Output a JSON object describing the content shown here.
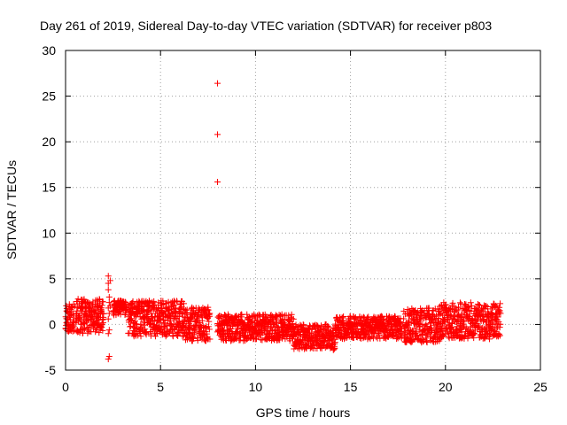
{
  "chart_data": {
    "type": "scatter",
    "title": "Day 261 of 2019, Sidereal Day-to-day VTEC variation (SDTVAR) for receiver p803",
    "xlabel": "GPS time / hours",
    "ylabel": "SDTVAR / TECUs",
    "xlim": [
      0,
      25
    ],
    "ylim": [
      -5,
      30
    ],
    "xticks": [
      0,
      5,
      10,
      15,
      20,
      25
    ],
    "yticks": [
      -5,
      0,
      5,
      10,
      15,
      20,
      25,
      30
    ],
    "xtick_labels": [
      "0",
      "5",
      "10",
      "15",
      "20",
      "25"
    ],
    "ytick_labels": [
      "-5",
      "0",
      "5",
      "10",
      "15",
      "20",
      "25",
      "30"
    ],
    "grid": true,
    "marker": "+",
    "color": "#ff0000",
    "series": [
      {
        "name": "SDTVAR",
        "points": [
          [
            0.05,
            0.2
          ],
          [
            0.1,
            1.5
          ],
          [
            0.15,
            -0.8
          ],
          [
            0.2,
            2.2
          ],
          [
            0.25,
            0.5
          ],
          [
            0.3,
            1.8
          ],
          [
            0.35,
            -0.3
          ],
          [
            0.4,
            1.0
          ],
          [
            0.5,
            2.0
          ],
          [
            0.55,
            0.2
          ],
          [
            0.6,
            1.2
          ],
          [
            0.7,
            0.8
          ],
          [
            0.8,
            1.5
          ],
          [
            0.85,
            0.0
          ],
          [
            0.9,
            2.5
          ],
          [
            1.0,
            -0.5
          ],
          [
            1.05,
            1.8
          ],
          [
            1.1,
            0.6
          ],
          [
            1.2,
            2.4
          ],
          [
            1.25,
            -0.8
          ],
          [
            1.3,
            1.0
          ],
          [
            1.4,
            2.2
          ],
          [
            1.45,
            0.3
          ],
          [
            1.5,
            1.6
          ],
          [
            1.6,
            -0.6
          ],
          [
            1.65,
            2.0
          ],
          [
            1.7,
            0.8
          ],
          [
            1.8,
            2.3
          ],
          [
            1.85,
            -0.2
          ],
          [
            1.9,
            1.4
          ],
          [
            1.95,
            0.5
          ],
          [
            2.25,
            5.3
          ],
          [
            2.25,
            4.5
          ],
          [
            2.25,
            3.8
          ],
          [
            2.3,
            3.0
          ],
          [
            2.3,
            2.4
          ],
          [
            2.25,
            1.8
          ],
          [
            2.3,
            1.2
          ],
          [
            2.25,
            0.6
          ],
          [
            2.3,
            -0.6
          ],
          [
            2.25,
            -1.0
          ],
          [
            2.3,
            -3.5
          ],
          [
            2.25,
            -3.8
          ],
          [
            2.35,
            4.8
          ],
          [
            2.35,
            2.0
          ],
          [
            2.6,
            2.0
          ],
          [
            2.7,
            1.5
          ],
          [
            2.8,
            2.3
          ],
          [
            3.0,
            1.7
          ],
          [
            3.1,
            2.1
          ],
          [
            3.4,
            1.0
          ],
          [
            3.5,
            2.2
          ],
          [
            3.6,
            0.2
          ],
          [
            3.7,
            1.8
          ],
          [
            3.75,
            -0.5
          ],
          [
            3.8,
            1.2
          ],
          [
            3.9,
            2.4
          ],
          [
            4.0,
            0.6
          ],
          [
            4.1,
            1.6
          ],
          [
            4.15,
            -0.8
          ],
          [
            4.2,
            0.9
          ],
          [
            4.3,
            1.4
          ],
          [
            4.4,
            0.0
          ],
          [
            4.5,
            1.2
          ],
          [
            4.6,
            -0.3
          ],
          [
            4.7,
            0.8
          ],
          [
            4.8,
            1.5
          ],
          [
            4.9,
            -0.6
          ],
          [
            5.0,
            0.5
          ],
          [
            5.1,
            1.3
          ],
          [
            5.2,
            -0.2
          ],
          [
            5.3,
            1.8
          ],
          [
            5.4,
            0.4
          ],
          [
            5.5,
            1.0
          ],
          [
            5.6,
            -0.5
          ],
          [
            5.7,
            0.7
          ],
          [
            5.8,
            1.3
          ],
          [
            5.9,
            0.0
          ],
          [
            6.0,
            0.9
          ],
          [
            6.1,
            -0.7
          ],
          [
            6.2,
            0.3
          ],
          [
            6.4,
            1.6
          ],
          [
            6.5,
            -0.9
          ],
          [
            6.55,
            -1.4
          ],
          [
            6.6,
            0.8
          ],
          [
            6.7,
            1.2
          ],
          [
            6.8,
            -0.4
          ],
          [
            6.9,
            0.6
          ],
          [
            7.0,
            1.0
          ],
          [
            7.1,
            -0.8
          ],
          [
            7.2,
            0.4
          ],
          [
            7.3,
            1.3
          ],
          [
            7.4,
            -0.2
          ],
          [
            7.5,
            0.8
          ],
          [
            8.0,
            26.4
          ],
          [
            8.0,
            20.8
          ],
          [
            8.0,
            15.6
          ],
          [
            8.2,
            -1.0
          ],
          [
            8.3,
            -1.6
          ],
          [
            8.4,
            0.3
          ],
          [
            8.5,
            -0.6
          ],
          [
            8.6,
            0.7
          ],
          [
            8.7,
            -1.3
          ],
          [
            8.8,
            -0.2
          ],
          [
            8.9,
            0.4
          ],
          [
            9.0,
            -0.8
          ],
          [
            9.2,
            0.2
          ],
          [
            9.4,
            -0.4
          ],
          [
            9.6,
            0.5
          ],
          [
            9.8,
            -0.3
          ],
          [
            10.0,
            0.8
          ],
          [
            10.2,
            0.1
          ],
          [
            10.4,
            0.5
          ],
          [
            10.6,
            -0.2
          ],
          [
            10.8,
            0.4
          ],
          [
            11.0,
            0.0
          ],
          [
            11.2,
            -0.4
          ],
          [
            11.4,
            0.1
          ],
          [
            11.6,
            -0.6
          ],
          [
            11.8,
            -0.2
          ],
          [
            12.0,
            -0.4
          ],
          [
            12.2,
            -0.9
          ],
          [
            12.4,
            -0.3
          ],
          [
            12.6,
            -1.1
          ],
          [
            12.8,
            -0.5
          ],
          [
            13.0,
            -1.6
          ],
          [
            13.2,
            -0.9
          ],
          [
            13.4,
            -2.0
          ],
          [
            13.6,
            -1.3
          ],
          [
            13.8,
            -2.4
          ],
          [
            14.0,
            -1.5
          ],
          [
            14.1,
            -2.8
          ],
          [
            14.2,
            -0.6
          ],
          [
            14.4,
            -0.9
          ],
          [
            14.6,
            -0.3
          ],
          [
            14.8,
            -1.2
          ],
          [
            15.0,
            -0.6
          ],
          [
            15.2,
            0.2
          ],
          [
            15.4,
            -0.8
          ],
          [
            15.6,
            0.0
          ],
          [
            15.7,
            0.8
          ],
          [
            15.8,
            -1.0
          ],
          [
            16.0,
            -0.2
          ],
          [
            16.2,
            -0.9
          ],
          [
            16.4,
            0.3
          ],
          [
            16.6,
            -0.5
          ],
          [
            16.8,
            -0.1
          ],
          [
            17.0,
            0.3
          ],
          [
            17.2,
            -0.6
          ],
          [
            17.4,
            0.1
          ],
          [
            17.6,
            -0.2
          ],
          [
            17.9,
            -1.5
          ],
          [
            18.0,
            -0.4
          ],
          [
            18.1,
            1.5
          ],
          [
            18.2,
            -1.8
          ],
          [
            18.3,
            0.6
          ],
          [
            18.4,
            -1.0
          ],
          [
            18.5,
            1.2
          ],
          [
            18.6,
            -1.6
          ],
          [
            18.7,
            0.4
          ],
          [
            18.8,
            -0.8
          ],
          [
            18.9,
            0.9
          ],
          [
            19.0,
            -1.2
          ],
          [
            19.1,
            1.5
          ],
          [
            19.2,
            -0.4
          ],
          [
            19.3,
            0.6
          ],
          [
            19.4,
            -1.4
          ],
          [
            19.5,
            0.2
          ],
          [
            19.6,
            -0.8
          ],
          [
            19.8,
            2.0
          ],
          [
            19.85,
            1.0
          ],
          [
            19.9,
            1.6
          ],
          [
            20.0,
            -1.0
          ],
          [
            20.1,
            0.6
          ],
          [
            20.2,
            -0.5
          ],
          [
            20.3,
            0.9
          ],
          [
            20.4,
            -0.9
          ],
          [
            20.5,
            0.3
          ],
          [
            20.6,
            -1.3
          ],
          [
            20.8,
            0.1
          ],
          [
            21.0,
            -1.2
          ],
          [
            21.2,
            0.5
          ],
          [
            21.4,
            -1.0
          ],
          [
            21.6,
            0.4
          ],
          [
            21.8,
            -0.8
          ],
          [
            22.0,
            1.0
          ],
          [
            22.1,
            -0.6
          ],
          [
            22.2,
            0.8
          ],
          [
            22.3,
            -0.4
          ],
          [
            22.4,
            1.2
          ],
          [
            22.5,
            0.0
          ],
          [
            22.6,
            0.6
          ],
          [
            22.7,
            -1.3
          ],
          [
            22.8,
            0.3
          ]
        ],
        "bands": [
          [
            0.0,
            0.45,
            -0.8,
            2.3
          ],
          [
            0.55,
            2.0,
            -1.0,
            2.8
          ],
          [
            2.5,
            3.2,
            1.0,
            2.6
          ],
          [
            3.3,
            6.3,
            -1.3,
            2.6
          ],
          [
            6.3,
            7.6,
            -1.8,
            1.9
          ],
          [
            8.0,
            12.0,
            -1.8,
            1.1
          ],
          [
            12.0,
            14.2,
            -2.7,
            0.0
          ],
          [
            14.2,
            17.7,
            -1.6,
            0.9
          ],
          [
            17.8,
            19.7,
            -2.0,
            1.8
          ],
          [
            19.7,
            22.9,
            -1.6,
            2.4
          ]
        ]
      }
    ]
  }
}
